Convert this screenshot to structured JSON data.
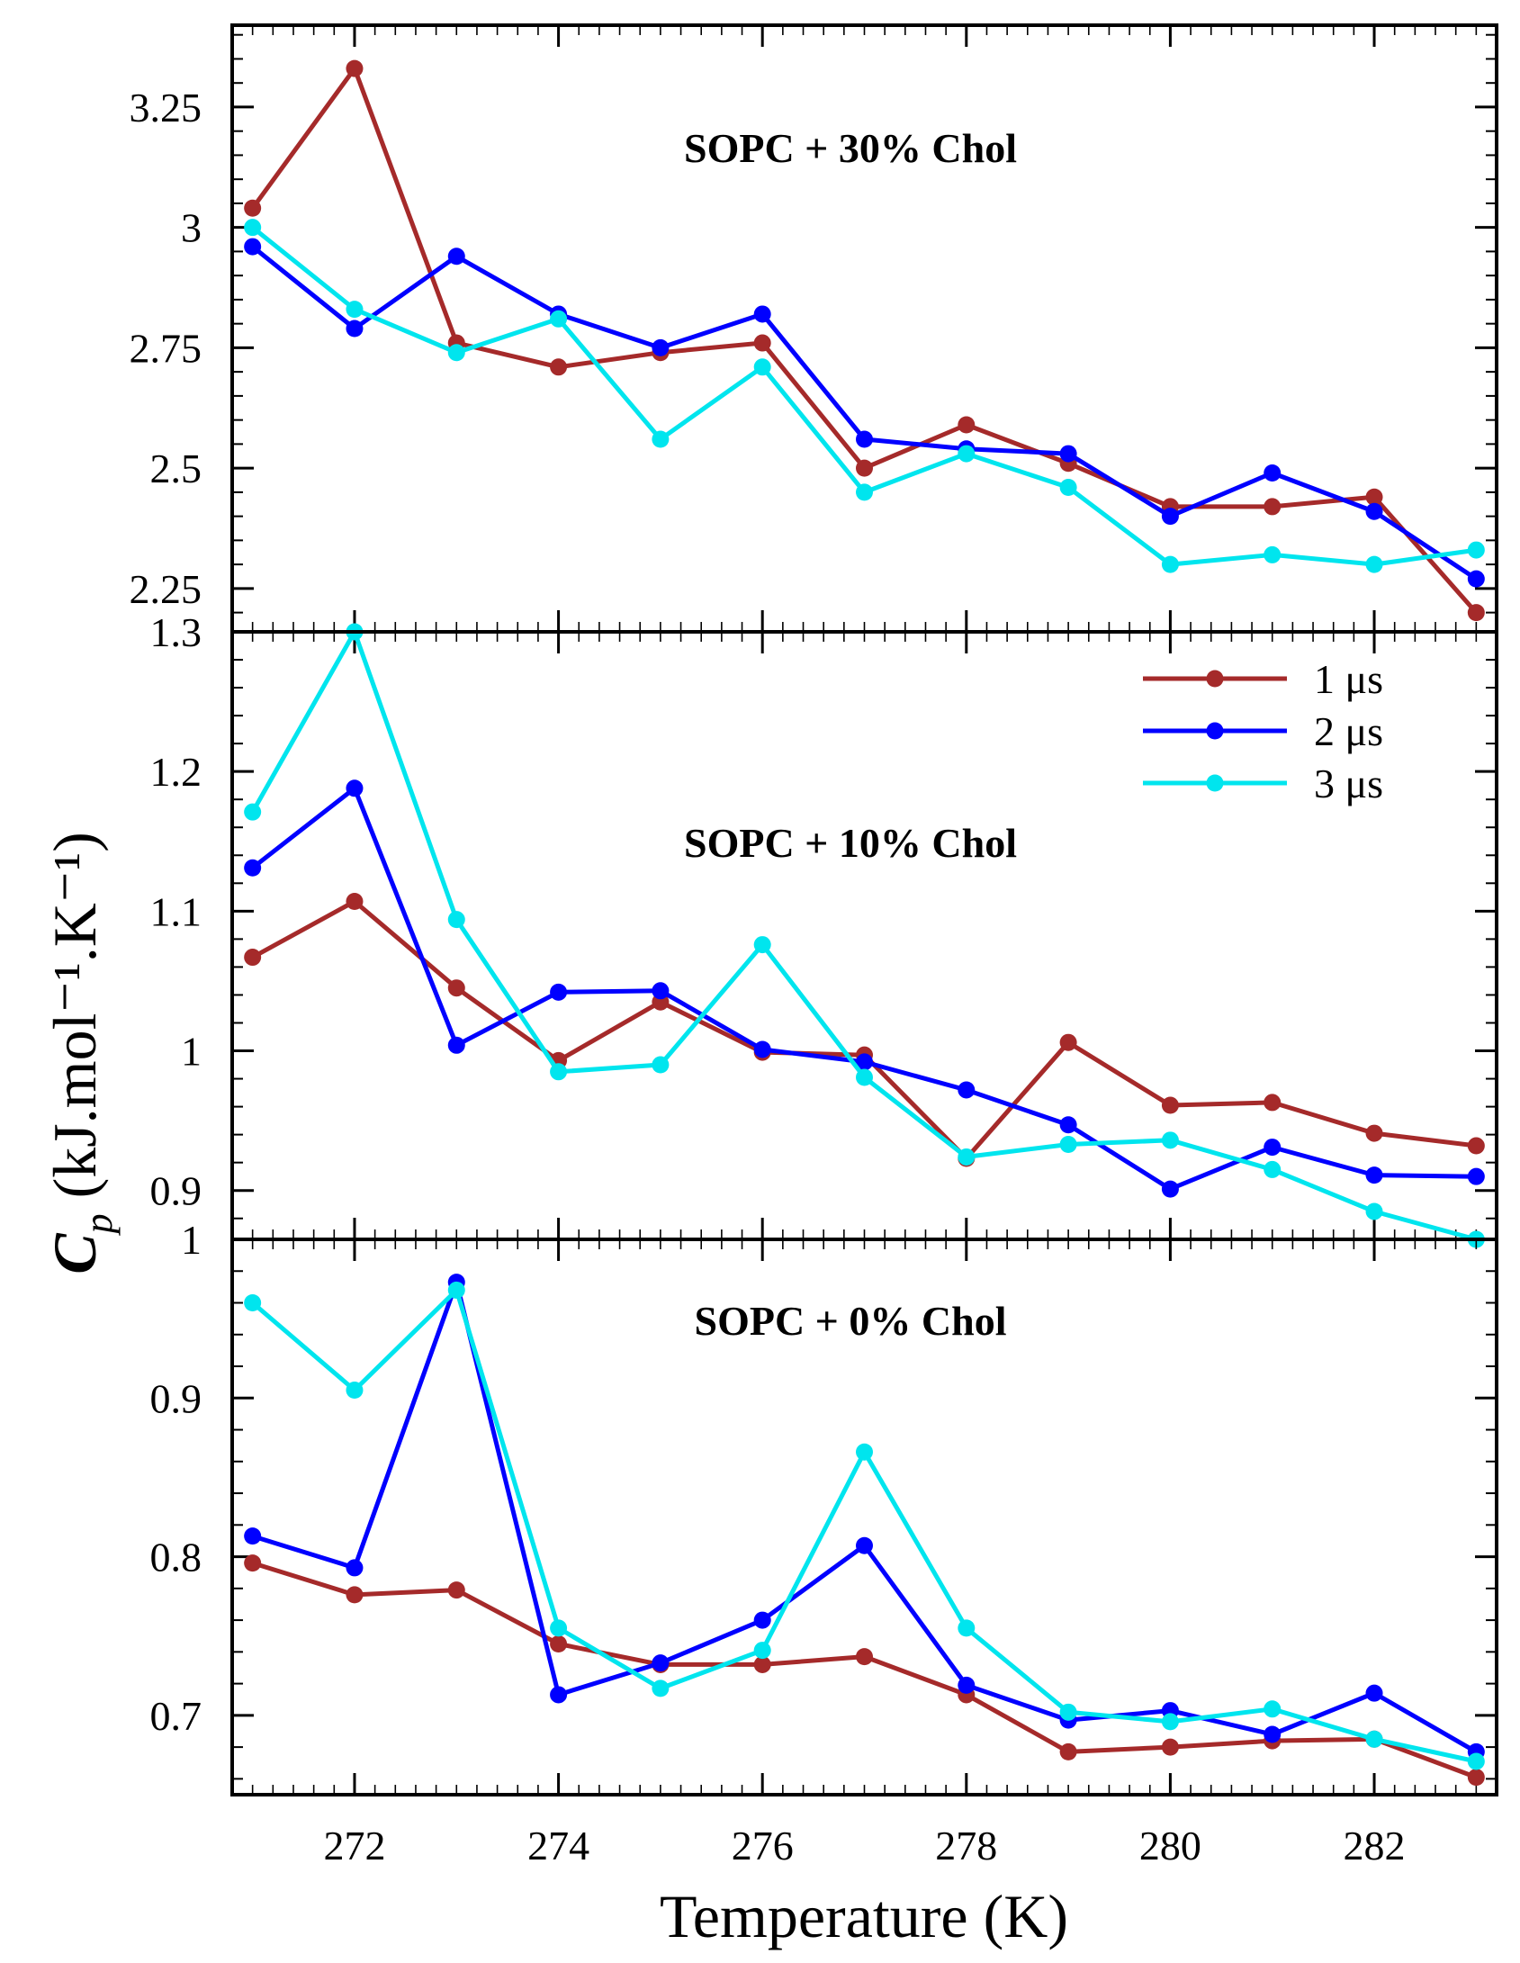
{
  "chart_data": {
    "type": "line",
    "xlabel": "Temperature (K)",
    "ylabel": {
      "main": "C",
      "subscript": "p",
      "units": " (kJ.mol⁻¹.K⁻¹)"
    },
    "xlim": [
      270.8,
      283.2
    ],
    "xticks": [
      272,
      274,
      276,
      278,
      280,
      282
    ],
    "xtick_labels": [
      "272",
      "274",
      "276",
      "278",
      "280",
      "282"
    ],
    "x": [
      271,
      272,
      273,
      274,
      275,
      276,
      277,
      278,
      279,
      280,
      281,
      282,
      283
    ],
    "legend": {
      "placement": "top-right of middle panel",
      "entries": [
        {
          "label": "1 μs",
          "color": "#a52a2a"
        },
        {
          "label": "2 μs",
          "color": "#0000ff"
        },
        {
          "label": "3 μs",
          "color": "#00e5ee"
        }
      ]
    },
    "panels": [
      {
        "title": "SOPC + 30% Chol",
        "ylim": [
          2.16,
          3.42
        ],
        "yticks": [
          2.25,
          2.5,
          2.75,
          3,
          3.25
        ],
        "ytick_labels": [
          "2.25",
          "2.5",
          "2.75",
          "3",
          "3.25"
        ],
        "series": [
          {
            "name": "1 μs",
            "color": "#a52a2a",
            "values": [
              3.04,
              3.33,
              2.76,
              2.71,
              2.74,
              2.76,
              2.5,
              2.59,
              2.51,
              2.42,
              2.42,
              2.44,
              2.2
            ]
          },
          {
            "name": "2 μs",
            "color": "#0000ff",
            "values": [
              2.96,
              2.79,
              2.94,
              2.82,
              2.75,
              2.82,
              2.56,
              2.54,
              2.53,
              2.4,
              2.49,
              2.41,
              2.27
            ]
          },
          {
            "name": "3 μs",
            "color": "#00e5ee",
            "values": [
              3.0,
              2.83,
              2.74,
              2.81,
              2.56,
              2.71,
              2.45,
              2.53,
              2.46,
              2.3,
              2.32,
              2.3,
              2.33
            ]
          }
        ]
      },
      {
        "title": "SOPC + 10% Chol",
        "ylim": [
          0.865,
          1.3
        ],
        "yticks": [
          0.9,
          1.0,
          1.1,
          1.2,
          1.3
        ],
        "ytick_labels": [
          "0.9",
          "1",
          "1.1",
          "1.2",
          "1.3"
        ],
        "series": [
          {
            "name": "1 μs",
            "color": "#a52a2a",
            "values": [
              1.067,
              1.107,
              1.045,
              0.993,
              1.035,
              0.999,
              0.997,
              0.923,
              1.006,
              0.961,
              0.963,
              0.941,
              0.932
            ]
          },
          {
            "name": "2 μs",
            "color": "#0000ff",
            "values": [
              1.131,
              1.188,
              1.004,
              1.042,
              1.043,
              1.001,
              0.992,
              0.972,
              0.947,
              0.901,
              0.931,
              0.911,
              0.91
            ]
          },
          {
            "name": "3 μs",
            "color": "#00e5ee",
            "values": [
              1.171,
              1.3,
              1.094,
              0.985,
              0.99,
              1.076,
              0.981,
              0.924,
              0.933,
              0.936,
              0.915,
              0.885,
              0.865
            ]
          }
        ]
      },
      {
        "title": "SOPC + 0% Chol",
        "ylim": [
          0.65,
          1.0
        ],
        "yticks": [
          0.7,
          0.8,
          0.9,
          1.0
        ],
        "ytick_labels": [
          "0.7",
          "0.8",
          "0.9",
          "1"
        ],
        "series": [
          {
            "name": "1 μs",
            "color": "#a52a2a",
            "values": [
              0.796,
              0.776,
              0.779,
              0.745,
              0.732,
              0.732,
              0.737,
              0.713,
              0.677,
              0.68,
              0.684,
              0.685,
              0.661
            ]
          },
          {
            "name": "2 μs",
            "color": "#0000ff",
            "values": [
              0.813,
              0.793,
              0.973,
              0.713,
              0.733,
              0.76,
              0.807,
              0.719,
              0.697,
              0.703,
              0.688,
              0.714,
              0.677
            ]
          },
          {
            "name": "3 μs",
            "color": "#00e5ee",
            "values": [
              0.96,
              0.905,
              0.968,
              0.755,
              0.717,
              0.741,
              0.866,
              0.755,
              0.702,
              0.696,
              0.704,
              0.685,
              0.671
            ]
          }
        ]
      }
    ]
  }
}
